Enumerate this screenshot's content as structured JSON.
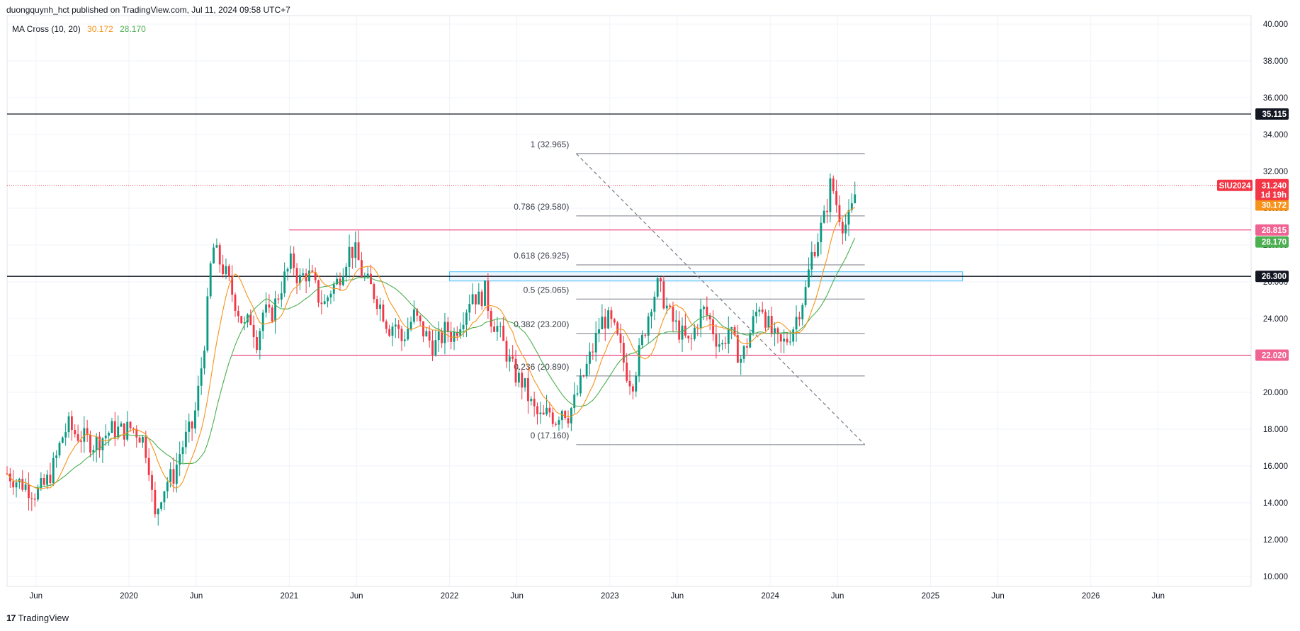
{
  "header": "duongquynh_hct published on TradingView.com, Jul 11, 2024 09:58 UTC+7",
  "legend": {
    "label": "MA Cross (10, 20)",
    "ma10": "30.172",
    "ma20": "28.170"
  },
  "footer": {
    "brand": "TradingView"
  },
  "colors": {
    "up": "#089981",
    "down": "#f23645",
    "ma10": "#f7931a",
    "ma20": "#4caf50",
    "hline_red": "#e91e63",
    "fib": "#787b86",
    "zone": "#b2dfee"
  },
  "chart_data": {
    "type": "candlestick",
    "symbol": "SIU2024",
    "ylim": [
      9.5,
      40.5
    ],
    "price_ticks": [
      "40.000",
      "38.000",
      "36.000",
      "34.000",
      "32.000",
      "30.000",
      "28.000",
      "26.000",
      "24.000",
      "22.000",
      "20.000",
      "18.000",
      "16.000",
      "14.000",
      "12.000",
      "10.000"
    ],
    "time_labels": [
      {
        "t": 2019.42,
        "label": "Jun"
      },
      {
        "t": 2020.0,
        "label": "2020"
      },
      {
        "t": 2020.42,
        "label": "Jun"
      },
      {
        "t": 2021.0,
        "label": "2021"
      },
      {
        "t": 2021.42,
        "label": "Jun"
      },
      {
        "t": 2022.0,
        "label": "2022"
      },
      {
        "t": 2022.42,
        "label": "Jun"
      },
      {
        "t": 2023.0,
        "label": "2023"
      },
      {
        "t": 2023.42,
        "label": "Jun"
      },
      {
        "t": 2024.0,
        "label": "2024"
      },
      {
        "t": 2024.42,
        "label": "Jun"
      },
      {
        "t": 2025.0,
        "label": "2025"
      },
      {
        "t": 2025.42,
        "label": "Jun"
      },
      {
        "t": 2026.0,
        "label": "2026"
      },
      {
        "t": 2026.42,
        "label": "Jun"
      }
    ],
    "tmin": 2019.24,
    "tmax": 2027.0,
    "close_path": [
      [
        2019.24,
        15.6
      ],
      [
        2019.3,
        15.2
      ],
      [
        2019.36,
        14.9
      ],
      [
        2019.42,
        14.5
      ],
      [
        2019.48,
        15.0
      ],
      [
        2019.54,
        16.2
      ],
      [
        2019.58,
        17.5
      ],
      [
        2019.62,
        18.2
      ],
      [
        2019.66,
        17.8
      ],
      [
        2019.72,
        17.5
      ],
      [
        2019.78,
        17.2
      ],
      [
        2019.84,
        17.6
      ],
      [
        2019.9,
        18.0
      ],
      [
        2019.96,
        17.9
      ],
      [
        2020.02,
        18.1
      ],
      [
        2020.08,
        17.6
      ],
      [
        2020.12,
        16.5
      ],
      [
        2020.16,
        13.0
      ],
      [
        2020.2,
        14.5
      ],
      [
        2020.24,
        15.2
      ],
      [
        2020.28,
        15.5
      ],
      [
        2020.32,
        16.8
      ],
      [
        2020.36,
        17.6
      ],
      [
        2020.4,
        18.2
      ],
      [
        2020.44,
        20.5
      ],
      [
        2020.48,
        23.5
      ],
      [
        2020.52,
        28.0
      ],
      [
        2020.56,
        27.2
      ],
      [
        2020.6,
        26.5
      ],
      [
        2020.64,
        25.5
      ],
      [
        2020.68,
        24.5
      ],
      [
        2020.72,
        23.5
      ],
      [
        2020.76,
        24.0
      ],
      [
        2020.8,
        22.8
      ],
      [
        2020.84,
        24.5
      ],
      [
        2020.88,
        24.0
      ],
      [
        2020.92,
        25.0
      ],
      [
        2020.96,
        26.0
      ],
      [
        2021.02,
        27.2
      ],
      [
        2021.06,
        26.0
      ],
      [
        2021.1,
        26.5
      ],
      [
        2021.14,
        26.2
      ],
      [
        2021.18,
        25.2
      ],
      [
        2021.22,
        24.8
      ],
      [
        2021.26,
        25.6
      ],
      [
        2021.3,
        26.0
      ],
      [
        2021.34,
        27.0
      ],
      [
        2021.38,
        27.8
      ],
      [
        2021.42,
        27.5
      ],
      [
        2021.46,
        26.2
      ],
      [
        2021.5,
        25.8
      ],
      [
        2021.54,
        25.2
      ],
      [
        2021.58,
        24.5
      ],
      [
        2021.62,
        23.5
      ],
      [
        2021.66,
        23.8
      ],
      [
        2021.7,
        22.8
      ],
      [
        2021.74,
        23.5
      ],
      [
        2021.78,
        24.2
      ],
      [
        2021.82,
        23.5
      ],
      [
        2021.86,
        23.0
      ],
      [
        2021.9,
        22.5
      ],
      [
        2021.94,
        22.8
      ],
      [
        2021.98,
        23.5
      ],
      [
        2022.02,
        23.0
      ],
      [
        2022.06,
        23.8
      ],
      [
        2022.1,
        24.5
      ],
      [
        2022.14,
        25.5
      ],
      [
        2022.18,
        25.0
      ],
      [
        2022.22,
        25.5
      ],
      [
        2022.26,
        24.0
      ],
      [
        2022.3,
        23.5
      ],
      [
        2022.34,
        22.5
      ],
      [
        2022.38,
        21.5
      ],
      [
        2022.42,
        20.8
      ],
      [
        2022.46,
        20.5
      ],
      [
        2022.5,
        19.5
      ],
      [
        2022.54,
        18.8
      ],
      [
        2022.58,
        18.5
      ],
      [
        2022.62,
        19.0
      ],
      [
        2022.66,
        18.5
      ],
      [
        2022.7,
        19.2
      ],
      [
        2022.74,
        18.8
      ],
      [
        2022.78,
        19.5
      ],
      [
        2022.82,
        20.5
      ],
      [
        2022.86,
        21.5
      ],
      [
        2022.9,
        22.5
      ],
      [
        2022.94,
        23.8
      ],
      [
        2022.98,
        24.0
      ],
      [
        2023.02,
        23.5
      ],
      [
        2023.06,
        22.5
      ],
      [
        2023.1,
        21.2
      ],
      [
        2023.14,
        20.5
      ],
      [
        2023.18,
        22.0
      ],
      [
        2023.22,
        23.5
      ],
      [
        2023.26,
        25.0
      ],
      [
        2023.3,
        25.8
      ],
      [
        2023.34,
        25.0
      ],
      [
        2023.38,
        24.0
      ],
      [
        2023.42,
        23.5
      ],
      [
        2023.46,
        23.0
      ],
      [
        2023.5,
        22.5
      ],
      [
        2023.54,
        23.8
      ],
      [
        2023.58,
        24.5
      ],
      [
        2023.62,
        24.0
      ],
      [
        2023.66,
        23.0
      ],
      [
        2023.7,
        22.5
      ],
      [
        2023.74,
        23.5
      ],
      [
        2023.78,
        22.5
      ],
      [
        2023.82,
        21.8
      ],
      [
        2023.86,
        22.8
      ],
      [
        2023.9,
        24.0
      ],
      [
        2023.94,
        25.0
      ],
      [
        2023.98,
        23.8
      ],
      [
        2024.02,
        23.0
      ],
      [
        2024.06,
        22.5
      ],
      [
        2024.1,
        22.8
      ],
      [
        2024.14,
        23.5
      ],
      [
        2024.18,
        24.5
      ],
      [
        2024.22,
        25.5
      ],
      [
        2024.26,
        27.5
      ],
      [
        2024.3,
        28.5
      ],
      [
        2024.34,
        29.5
      ],
      [
        2024.38,
        31.5
      ],
      [
        2024.42,
        30.0
      ],
      [
        2024.46,
        29.0
      ],
      [
        2024.5,
        29.5
      ],
      [
        2024.54,
        31.24
      ]
    ],
    "ma10_value": 30.172,
    "ma20_value": 28.17,
    "horizontal_lines": [
      {
        "price": 35.115,
        "color": "#131722",
        "label": "35.115"
      },
      {
        "price": 26.3,
        "color": "#131722",
        "label": "26.300"
      },
      {
        "price": 28.815,
        "color": "#e91e63",
        "label": "28.815",
        "from_t": 2021.0
      },
      {
        "price": 22.02,
        "color": "#e91e63",
        "label": "22.020",
        "from_t": 2020.64
      }
    ],
    "last_price": {
      "price": 31.24,
      "label": "31.240",
      "countdown": "1d 19h",
      "symbol": "SIU2024"
    },
    "zone": {
      "t1": 2022.0,
      "t2": 2025.2,
      "p1": 26.05,
      "p2": 26.55
    },
    "fibonacci": [
      {
        "level": "1",
        "price": 32.965,
        "label": "1 (32.965)"
      },
      {
        "level": "0.786",
        "price": 29.58,
        "label": "0.786 (29.580)"
      },
      {
        "level": "0.618",
        "price": 26.925,
        "label": "0.618 (26.925)"
      },
      {
        "level": "0.5",
        "price": 25.065,
        "label": "0.5 (25.065)"
      },
      {
        "level": "0.382",
        "price": 23.2,
        "label": "0.382 (23.200)"
      },
      {
        "level": "0.236",
        "price": 20.89,
        "label": "0.236 (20.890)"
      },
      {
        "level": "0",
        "price": 17.16,
        "label": "0 (17.160)"
      }
    ],
    "fib_t_start": 2022.79,
    "fib_t_end": 2024.59,
    "trendline": {
      "t1": 2022.79,
      "p1": 32.965,
      "t2": 2024.59,
      "p2": 17.16
    }
  }
}
